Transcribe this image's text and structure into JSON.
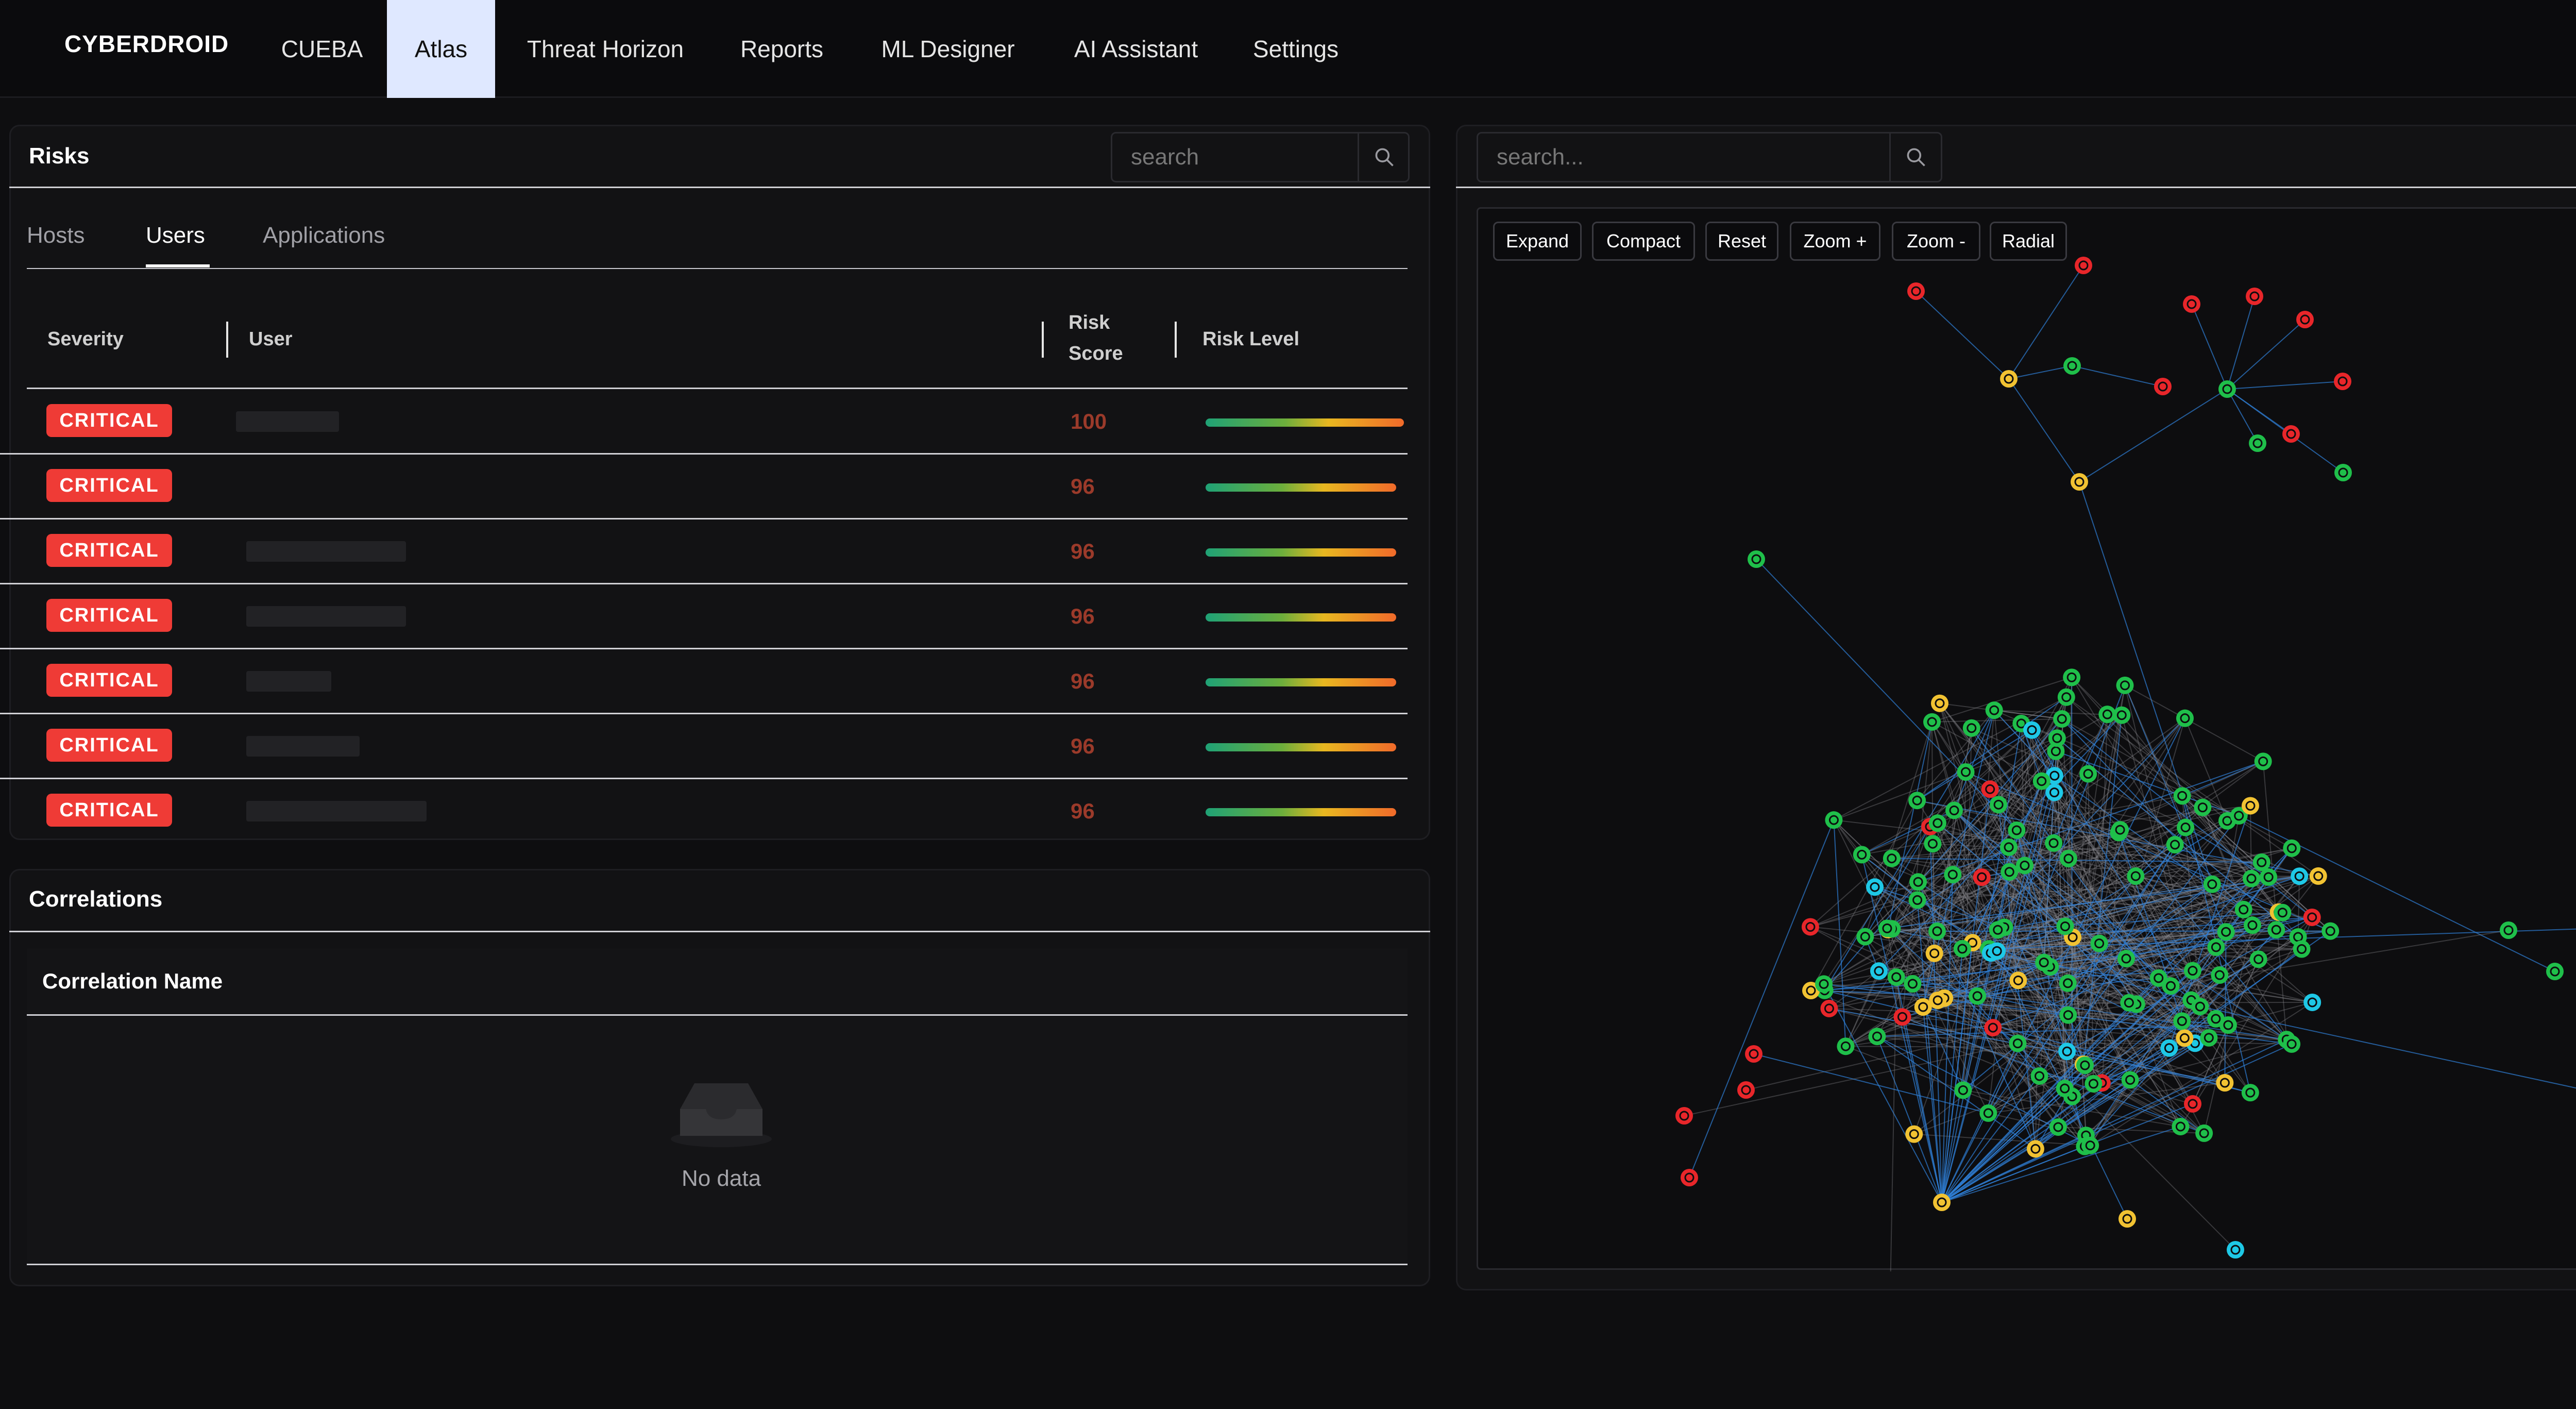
{
  "nav": {
    "brand": "CYBERDROID",
    "tabs": [
      "CUEBA",
      "Atlas",
      "Threat Horizon",
      "Reports",
      "ML Designer",
      "AI Assistant",
      "Settings"
    ],
    "active_tab": "Atlas"
  },
  "risks": {
    "title": "Risks",
    "search_placeholder": "search",
    "subtabs": [
      "Hosts",
      "Users",
      "Applications"
    ],
    "active_subtab": "Users",
    "columns": {
      "severity": "Severity",
      "user": "User",
      "risk_score_1": "Risk",
      "risk_score_2": "Score",
      "risk_level": "Risk Level"
    },
    "rows": [
      {
        "severity": "CRITICAL",
        "score": "100",
        "risk_level": 1.0
      },
      {
        "severity": "CRITICAL",
        "score": "96",
        "risk_level": 0.96
      },
      {
        "severity": "CRITICAL",
        "score": "96",
        "risk_level": 0.96
      },
      {
        "severity": "CRITICAL",
        "score": "96",
        "risk_level": 0.96
      },
      {
        "severity": "CRITICAL",
        "score": "96",
        "risk_level": 0.96
      },
      {
        "severity": "CRITICAL",
        "score": "96",
        "risk_level": 0.96
      },
      {
        "severity": "CRITICAL",
        "score": "96",
        "risk_level": 0.96
      }
    ]
  },
  "correlations": {
    "title": "Correlations",
    "column": "Correlation Name",
    "empty_text": "No data"
  },
  "graph": {
    "search_placeholder": "search...",
    "buttons": [
      "Expand",
      "Compact",
      "Reset",
      "Zoom +",
      "Zoom -",
      "Radial"
    ],
    "node_colors": {
      "green": "#1fbf4a",
      "red": "#e8262a",
      "yellow": "#f1c232",
      "cyan": "#1ec8e6"
    }
  },
  "colors": {
    "critical": "#ef3b36",
    "accent_tab": "#dfe8ff",
    "edge": "#2f7fd6"
  }
}
